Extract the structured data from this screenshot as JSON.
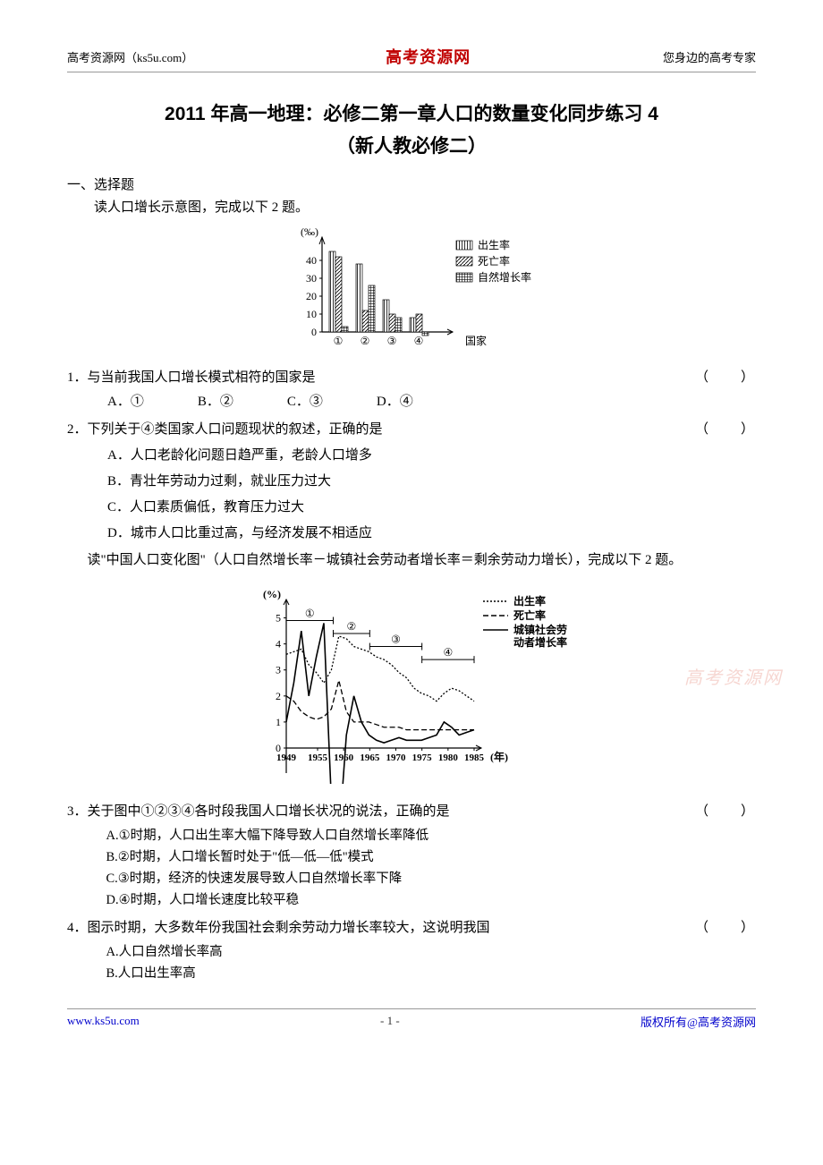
{
  "header": {
    "left": "高考资源网（ks5u.com）",
    "center": "高考资源网",
    "right": "您身边的高考专家"
  },
  "title": "2011 年高一地理：必修二第一章人口的数量变化同步练习 4",
  "subtitle": "（新人教必修二）",
  "section1": "一、选择题",
  "intro1": "读人口增长示意图，完成以下 2 题。",
  "chart1": {
    "type": "bar",
    "y_label": "(‰)",
    "y_ticks": [
      0,
      10,
      20,
      30,
      40
    ],
    "categories": [
      "①",
      "②",
      "③",
      "④"
    ],
    "x_label": "国家",
    "series": [
      {
        "name": "出生率",
        "pattern": "vlines",
        "values": [
          45,
          38,
          18,
          8
        ]
      },
      {
        "name": "死亡率",
        "pattern": "diag",
        "values": [
          42,
          12,
          10,
          10
        ]
      },
      {
        "name": "自然增长率",
        "pattern": "grid",
        "values": [
          3,
          26,
          8,
          -2
        ]
      }
    ],
    "legend": [
      "出生率",
      "死亡率",
      "自然增长率"
    ],
    "axis_color": "#000000",
    "font_size": 12
  },
  "q1": {
    "text": "1．与当前我国人口增长模式相符的国家是",
    "paren": "（　　）",
    "options": {
      "A": "A．①",
      "B": "B．②",
      "C": "C．③",
      "D": "D．④"
    }
  },
  "q2": {
    "text": "2．下列关于④类国家人口问题现状的叙述，正确的是",
    "paren": "（　　）",
    "options": {
      "A": "A．人口老龄化问题日趋严重，老龄人口增多",
      "B": "B．青壮年劳动力过剩，就业压力过大",
      "C": "C．人口素质偏低，教育压力过大",
      "D": "D．城市人口比重过高，与经济发展不相适应"
    }
  },
  "intro2": "读\"中国人口变化图\"（人口自然增长率－城镇社会劳动者增长率＝剩余劳动力增长），完成以下 2 题。",
  "chart2": {
    "type": "line",
    "y_label": "(%)",
    "y_ticks": [
      0,
      1,
      2,
      3,
      4,
      5
    ],
    "x_ticks": [
      "1949",
      "1955",
      "1960",
      "1965",
      "1970",
      "1975",
      "1980",
      "1985"
    ],
    "x_label": "(年)",
    "periods": [
      "①",
      "②",
      "③",
      "④"
    ],
    "legend": [
      "出生率",
      "死亡率",
      "城镇社会劳动者增长率"
    ],
    "line_styles": [
      "dotted",
      "dashed",
      "solid"
    ],
    "axis_color": "#000000",
    "font_size": 12,
    "birth_rate": [
      3.6,
      3.7,
      3.8,
      3.2,
      2.9,
      2.5,
      3.0,
      4.3,
      4.2,
      3.9,
      3.8,
      3.7,
      3.5,
      3.4,
      3.2,
      2.9,
      2.7,
      2.3,
      2.1,
      2.0,
      1.8,
      2.1,
      2.3,
      2.2,
      2.0,
      1.8
    ],
    "death_rate": [
      2.0,
      1.8,
      1.4,
      1.2,
      1.1,
      1.2,
      1.5,
      2.6,
      1.4,
      1.0,
      1.0,
      1.0,
      0.9,
      0.8,
      0.8,
      0.8,
      0.7,
      0.7,
      0.7,
      0.7,
      0.7,
      0.7,
      0.7,
      0.7,
      0.7,
      0.7
    ],
    "labor_rate": [
      1.0,
      2.5,
      4.5,
      2.0,
      3.5,
      4.8,
      -2.0,
      -3.5,
      0.5,
      2.0,
      1.0,
      0.5,
      0.3,
      0.2,
      0.3,
      0.4,
      0.3,
      0.3,
      0.3,
      0.4,
      0.5,
      1.0,
      0.8,
      0.5,
      0.6,
      0.7
    ]
  },
  "q3": {
    "text": "3．关于图中①②③④各时段我国人口增长状况的说法，正确的是",
    "paren": "（　　）",
    "options": {
      "A": "A.①时期，人口出生率大幅下降导致人口自然增长率降低",
      "B": "B.②时期，人口增长暂时处于\"低—低—低\"模式",
      "C": "C.③时期，经济的快速发展导致人口自然增长率下降",
      "D": "D.④时期，人口增长速度比较平稳"
    }
  },
  "q4": {
    "text": "4．图示时期，大多数年份我国社会剩余劳动力增长率较大，这说明我国",
    "paren": "（　　）",
    "options": {
      "A": "A.人口自然增长率高",
      "B": "B.人口出生率高"
    }
  },
  "footer": {
    "left": "www.ks5u.com",
    "center": "- 1 -",
    "right": "版权所有@高考资源网"
  },
  "watermark": "高考资源网"
}
